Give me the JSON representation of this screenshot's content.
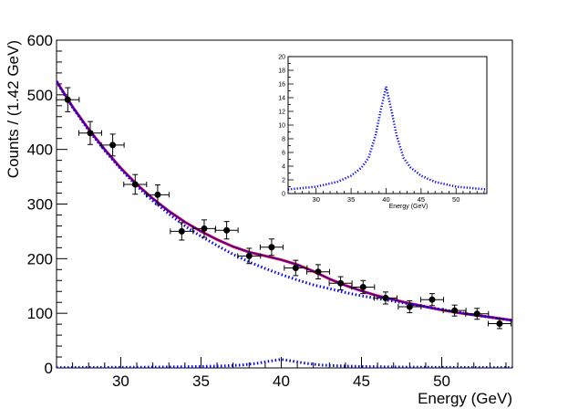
{
  "chart_data": [
    {
      "type": "scatter",
      "xlabel": "Energy (GeV)",
      "ylabel": "Counts / (1.42 GeV)",
      "xlim": [
        26.0,
        54.4
      ],
      "ylim": [
        0,
        600
      ],
      "x_ticks": [
        30,
        35,
        40,
        45,
        50
      ],
      "y_ticks": [
        0,
        100,
        200,
        300,
        400,
        500,
        600
      ],
      "grid": false,
      "colors": {
        "data": "#000000",
        "total_fit": "#ff0000",
        "background": "#0000ff",
        "signal": "#0000ff",
        "full_model": "#0000ff"
      },
      "series": [
        {
          "kind": "points_with_errors",
          "x": [
            26.7,
            28.1,
            29.5,
            30.9,
            32.3,
            33.8,
            35.2,
            36.6,
            38.0,
            39.4,
            40.9,
            42.3,
            43.7,
            45.1,
            46.5,
            48.0,
            49.4,
            50.8,
            52.2,
            53.6
          ],
          "y": [
            491,
            430,
            408,
            336,
            317,
            250,
            255,
            252,
            205,
            221,
            183,
            176,
            155,
            148,
            128,
            112,
            125,
            105,
            99,
            81
          ],
          "yerr": [
            22,
            21,
            20,
            18,
            18,
            16,
            16,
            16,
            14,
            15,
            14,
            13,
            12,
            12,
            11,
            11,
            11,
            10,
            10,
            9
          ],
          "xerr": 0.71
        },
        {
          "kind": "curve",
          "style": "solid-thick",
          "x": [
            26.0,
            27.0,
            28.0,
            29.0,
            30.0,
            31.0,
            32.0,
            33.0,
            34.0,
            35.0,
            36.0,
            37.0,
            38.0,
            39.0,
            40.0,
            41.0,
            42.0,
            43.0,
            44.0,
            45.0,
            46.0,
            47.0,
            48.0,
            49.0,
            50.0,
            51.0,
            52.0,
            53.0,
            54.4
          ],
          "y": [
            525,
            478,
            437,
            400,
            366,
            336,
            310,
            287,
            267,
            250,
            235,
            222,
            212,
            205,
            198,
            189,
            177,
            163,
            151,
            141,
            132,
            125,
            118,
            112,
            106,
            101,
            97,
            93,
            87
          ]
        },
        {
          "kind": "curve",
          "style": "solid-thin",
          "x": [
            26.0,
            27.0,
            28.0,
            29.0,
            30.0,
            31.0,
            32.0,
            33.0,
            34.0,
            35.0,
            36.0,
            37.0,
            38.0,
            39.0,
            40.0,
            41.0,
            42.0,
            43.0,
            44.0,
            45.0,
            46.0,
            47.0,
            48.0,
            49.0,
            50.0,
            51.0,
            52.0,
            53.0,
            54.4
          ],
          "y": [
            525,
            478,
            437,
            400,
            366,
            336,
            310,
            287,
            267,
            250,
            235,
            222,
            212,
            205,
            198,
            189,
            177,
            163,
            151,
            141,
            132,
            125,
            118,
            112,
            106,
            101,
            97,
            93,
            87
          ]
        },
        {
          "kind": "curve",
          "style": "dotted",
          "x": [
            26.0,
            27.0,
            28.0,
            29.0,
            30.0,
            31.0,
            32.0,
            33.0,
            34.0,
            35.0,
            36.0,
            37.0,
            38.0,
            39.0,
            40.0,
            41.0,
            42.0,
            43.0,
            44.0,
            45.0,
            46.0,
            47.0,
            48.0,
            49.0,
            50.0,
            51.0,
            52.0,
            53.0,
            54.4
          ],
          "y": [
            524,
            477,
            435,
            398,
            364,
            333,
            306,
            282,
            260,
            241,
            224,
            208,
            194,
            182,
            171,
            161,
            152,
            145,
            138,
            132,
            127,
            122,
            117,
            112,
            107,
            102,
            97,
            93,
            87
          ]
        },
        {
          "kind": "curve",
          "style": "dotted",
          "x": [
            26.0,
            30.0,
            33.0,
            35.0,
            36.5,
            37.5,
            38.5,
            39.2,
            40.0,
            40.8,
            41.5,
            42.5,
            43.5,
            45.0,
            47.0,
            50.0,
            54.4
          ],
          "y": [
            0.6,
            1.0,
            1.7,
            2.6,
            3.8,
            5.2,
            8.5,
            12.0,
            15.6,
            12.0,
            8.5,
            5.2,
            3.8,
            2.6,
            1.7,
            1.0,
            0.6
          ]
        }
      ]
    },
    {
      "type": "line",
      "xlabel": "Energy (GeV)",
      "xlim": [
        26.0,
        54.4
      ],
      "ylim": [
        0,
        20
      ],
      "x_ticks": [
        30,
        35,
        40,
        45,
        50
      ],
      "y_ticks": [
        0,
        2,
        4,
        6,
        8,
        10,
        12,
        14,
        16,
        18,
        20
      ],
      "series": [
        {
          "kind": "curve",
          "style": "dotted",
          "x": [
            26.0,
            30.0,
            33.0,
            35.0,
            36.5,
            37.5,
            38.5,
            39.2,
            40.0,
            40.8,
            41.5,
            42.5,
            43.5,
            45.0,
            47.0,
            50.0,
            54.4
          ],
          "y": [
            0.6,
            1.0,
            1.7,
            2.6,
            3.8,
            5.2,
            8.5,
            12.0,
            15.6,
            12.0,
            8.5,
            5.2,
            3.8,
            2.6,
            1.7,
            1.0,
            0.6
          ]
        }
      ]
    }
  ]
}
